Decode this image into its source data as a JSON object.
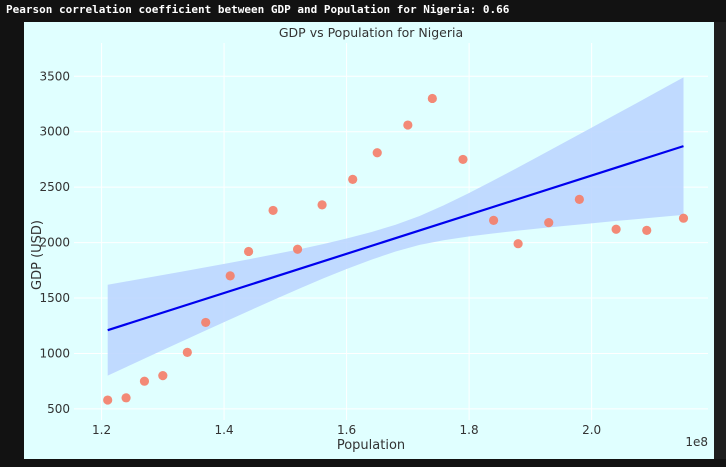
{
  "output": {
    "text": "Pearson correlation coefficient between GDP and Population for Nigeria: 0.66"
  },
  "chart_data": {
    "type": "scatter",
    "title": "GDP vs Population for Nigeria",
    "xlabel": "Population",
    "ylabel": "GDP (USD)",
    "x_offset_label": "1e8",
    "xlim": [
      1.155,
      2.19
    ],
    "ylim": [
      400,
      3800
    ],
    "xticks": [
      1.2,
      1.4,
      1.6,
      1.8,
      2.0
    ],
    "xtick_labels": [
      "1.2",
      "1.4",
      "1.6",
      "1.8",
      "2.0"
    ],
    "yticks": [
      500,
      1000,
      1500,
      2000,
      2500,
      3000,
      3500
    ],
    "ytick_labels": [
      "500",
      "1000",
      "1500",
      "2000",
      "2500",
      "3000",
      "3500"
    ],
    "grid": true,
    "legend": false,
    "colors": {
      "points": "#f47f6a",
      "regression_line": "#0000ee",
      "confidence_band": "#bcd6ff",
      "background": "#e0ffff"
    },
    "x": [
      1.21,
      1.24,
      1.27,
      1.3,
      1.34,
      1.37,
      1.41,
      1.44,
      1.48,
      1.52,
      1.56,
      1.61,
      1.65,
      1.7,
      1.74,
      1.79,
      1.84,
      1.88,
      1.93,
      1.98,
      2.04,
      2.09,
      2.15
    ],
    "y": [
      580,
      600,
      750,
      800,
      1010,
      1280,
      1700,
      1920,
      2290,
      1940,
      2340,
      2570,
      2810,
      3060,
      3300,
      2750,
      2200,
      1990,
      2180,
      2390,
      2120,
      2110,
      2220
    ],
    "regression": {
      "x": [
        1.21,
        2.15
      ],
      "y": [
        1210,
        2870
      ],
      "ci_lower_start": 860,
      "ci_upper_start": 1680,
      "ci_lower_end": 2490,
      "ci_upper_end": 3730
    }
  }
}
